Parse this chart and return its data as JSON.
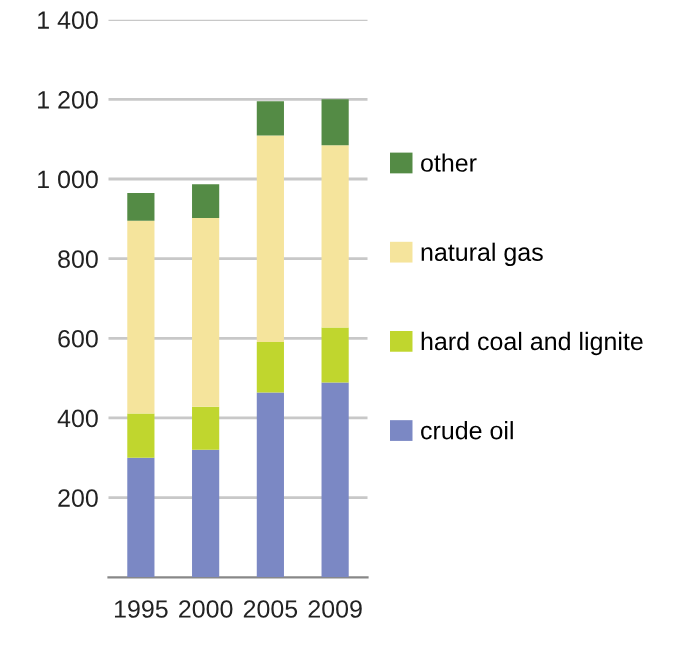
{
  "chart_data": {
    "type": "bar",
    "stacked": true,
    "categories": [
      "1995",
      "2000",
      "2005",
      "2009"
    ],
    "series": [
      {
        "name": "crude oil",
        "color": "#7b88c4",
        "values": [
          300,
          320,
          464,
          489
        ]
      },
      {
        "name": "hard coal and lignite",
        "color": "#c0d62e",
        "values": [
          111,
          108,
          127,
          138
        ]
      },
      {
        "name": "natural gas",
        "color": "#f5e49c",
        "values": [
          484,
          474,
          518,
          458
        ]
      },
      {
        "name": "other",
        "color": "#548b45",
        "values": [
          70,
          85,
          86,
          115
        ]
      }
    ],
    "ylim": [
      0,
      1400
    ],
    "yticks": [
      {
        "value": 200,
        "label": "200"
      },
      {
        "value": 400,
        "label": "400"
      },
      {
        "value": 600,
        "label": "600"
      },
      {
        "value": 800,
        "label": "800"
      },
      {
        "value": 1000,
        "label": "1 000"
      },
      {
        "value": 1200,
        "label": "1 200"
      },
      {
        "value": 1400,
        "label": "1 400"
      }
    ],
    "grid": "y",
    "legend": "right"
  }
}
